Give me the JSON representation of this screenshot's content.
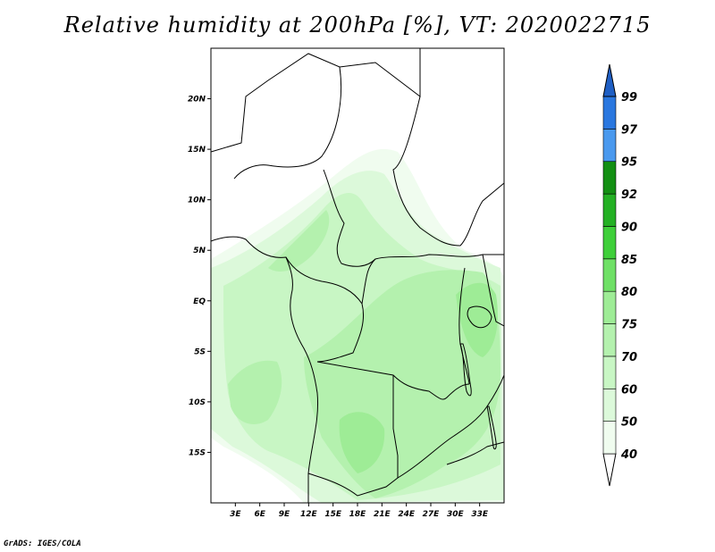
{
  "title": "Relative humidity at 200hPa [%], VT: 2020022715",
  "credit": "GrADS: IGES/COLA",
  "map": {
    "lon_range": [
      0,
      36
    ],
    "lat_range": [
      -20,
      25
    ],
    "x_ticks": [
      {
        "lon": 3,
        "label": "3E"
      },
      {
        "lon": 6,
        "label": "6E"
      },
      {
        "lon": 9,
        "label": "9E"
      },
      {
        "lon": 12,
        "label": "12E"
      },
      {
        "lon": 15,
        "label": "15E"
      },
      {
        "lon": 18,
        "label": "18E"
      },
      {
        "lon": 21,
        "label": "21E"
      },
      {
        "lon": 24,
        "label": "24E"
      },
      {
        "lon": 27,
        "label": "27E"
      },
      {
        "lon": 30,
        "label": "30E"
      },
      {
        "lon": 33,
        "label": "33E"
      }
    ],
    "y_ticks": [
      {
        "lat": 20,
        "label": "20N"
      },
      {
        "lat": 15,
        "label": "15N"
      },
      {
        "lat": 10,
        "label": "10N"
      },
      {
        "lat": 5,
        "label": "5N"
      },
      {
        "lat": 0,
        "label": "EQ"
      },
      {
        "lat": -5,
        "label": "5S"
      },
      {
        "lat": -10,
        "label": "10S"
      },
      {
        "lat": -15,
        "label": "15S"
      }
    ]
  },
  "legend": {
    "bins": [
      {
        "from": 40,
        "to": 50,
        "color": "#f0fcef"
      },
      {
        "from": 50,
        "to": 60,
        "color": "#dcf9da"
      },
      {
        "from": 60,
        "to": 70,
        "color": "#c8f6c4"
      },
      {
        "from": 70,
        "to": 75,
        "color": "#b4f1ae"
      },
      {
        "from": 75,
        "to": 80,
        "color": "#9eec96"
      },
      {
        "from": 80,
        "to": 85,
        "color": "#6fe066"
      },
      {
        "from": 85,
        "to": 90,
        "color": "#3fcf3a"
      },
      {
        "from": 90,
        "to": 92,
        "color": "#24b024"
      },
      {
        "from": 92,
        "to": 95,
        "color": "#138f13"
      },
      {
        "from": 95,
        "to": 97,
        "color": "#4a99ee"
      },
      {
        "from": 97,
        "to": 99,
        "color": "#2a77df"
      }
    ],
    "over_color": "#1f5fc4",
    "labels": [
      "40",
      "50",
      "60",
      "70",
      "75",
      "80",
      "85",
      "90",
      "92",
      "95",
      "97",
      "99"
    ]
  }
}
